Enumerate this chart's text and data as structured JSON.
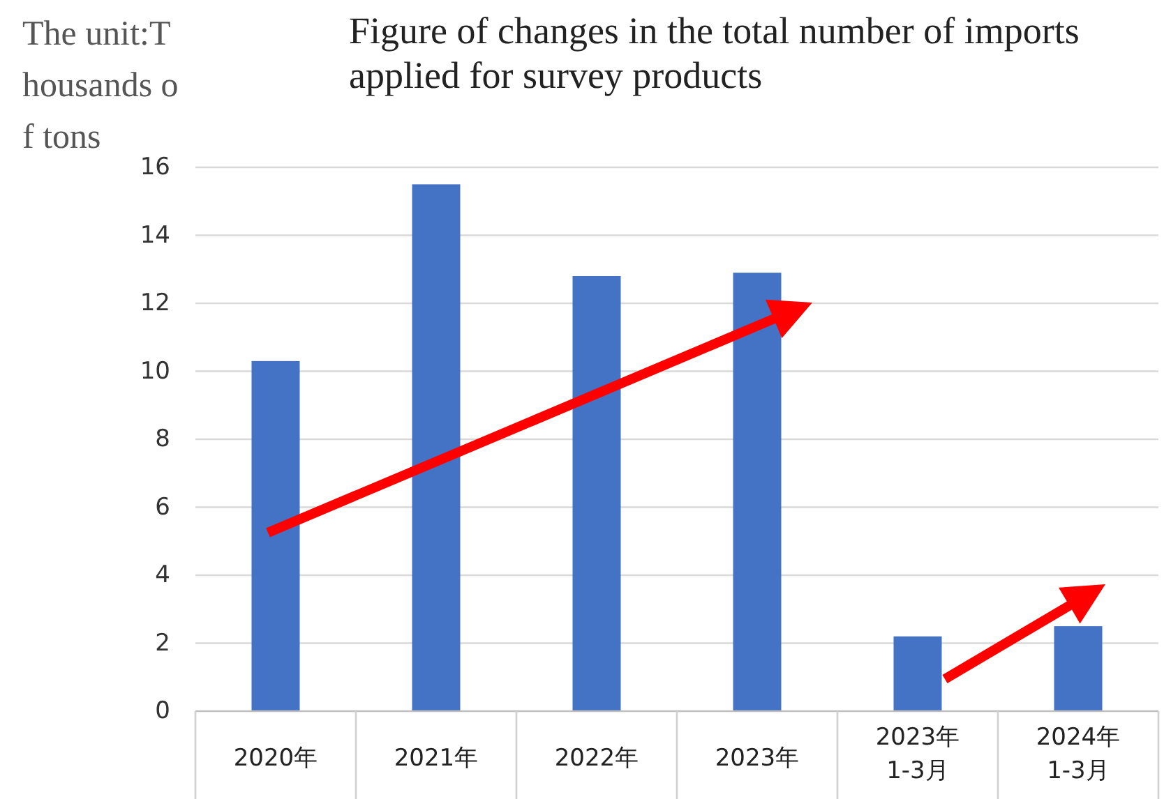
{
  "chart_data": {
    "type": "bar",
    "title": "Figure of changes in the total number of imports applied for survey products",
    "ylabel": "The unit:Thousands of tons",
    "categories": [
      "2020年",
      "2021年",
      "2022年",
      "2023年",
      "2023年\n1-3月",
      "2024年\n1-3月"
    ],
    "values": [
      10.3,
      15.5,
      12.8,
      12.9,
      2.2,
      2.5
    ],
    "color": "#4472c4",
    "ylim": [
      0,
      16
    ],
    "yticks": [
      0,
      2,
      4,
      6,
      8,
      10,
      12,
      14,
      16
    ],
    "grid": "y"
  }
}
